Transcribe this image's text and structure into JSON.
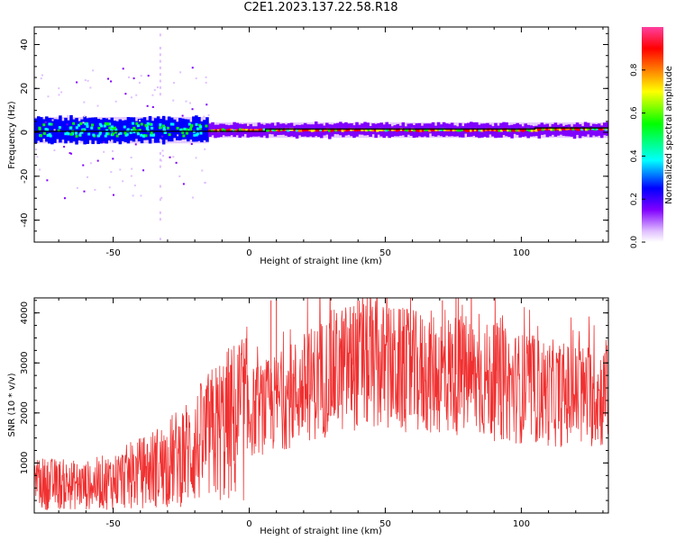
{
  "title": "C2E1.2023.137.22.58.R18",
  "chart_data": [
    {
      "type": "heatmap",
      "name": "spectrogram",
      "xlabel": "Height of straight line (km)",
      "ylabel": "Frequency (Hz)",
      "xlim": [
        -79,
        132
      ],
      "ylim": [
        -50,
        48
      ],
      "xticks": [
        -50,
        0,
        50,
        100
      ],
      "yticks": [
        -40,
        -20,
        0,
        20,
        40
      ],
      "colorbar": {
        "label": "Normalized spectral amplitude",
        "range": [
          0,
          1
        ],
        "ticks": [
          0.0,
          0.2,
          0.4,
          0.6,
          0.8
        ],
        "tick_labels": [
          "0.0",
          "0.2",
          "0.4",
          "0.6",
          "0.8"
        ],
        "colormap": [
          "#ffffff",
          "#e0c0ff",
          "#8000ff",
          "#0000ff",
          "#00ffff",
          "#00ff00",
          "#ffff00",
          "#ff8000",
          "#ff0000",
          "#ff40a0"
        ]
      },
      "doppler_line": [
        {
          "x": -79,
          "y": 0.5
        },
        {
          "x": -10,
          "y": 0.5
        },
        {
          "x": 6,
          "y": 0.5
        },
        {
          "x": 6,
          "y": 1.5
        },
        {
          "x": 105,
          "y": 1.5
        },
        {
          "x": 105,
          "y": 2
        },
        {
          "x": 132,
          "y": 2
        }
      ],
      "band": {
        "center_hz": 1,
        "halfwidth_hz": 4
      },
      "grid": false
    },
    {
      "type": "line",
      "name": "snr",
      "xlabel": "Height of straight line (km)",
      "ylabel": "SNR (10 * v/v)",
      "xlim": [
        -79,
        132
      ],
      "ylim": [
        0,
        4300
      ],
      "xticks": [
        -50,
        0,
        50,
        100
      ],
      "yticks": [
        1000,
        2000,
        3000,
        4000
      ],
      "color": "#f03030",
      "trend": [
        {
          "x": -79,
          "y": 600
        },
        {
          "x": -60,
          "y": 550
        },
        {
          "x": -50,
          "y": 650
        },
        {
          "x": -40,
          "y": 800
        },
        {
          "x": -30,
          "y": 1000
        },
        {
          "x": -20,
          "y": 1300
        },
        {
          "x": -10,
          "y": 1700
        },
        {
          "x": 0,
          "y": 2000
        },
        {
          "x": 10,
          "y": 2200
        },
        {
          "x": 20,
          "y": 2500
        },
        {
          "x": 30,
          "y": 2800
        },
        {
          "x": 40,
          "y": 3000
        },
        {
          "x": 50,
          "y": 2900
        },
        {
          "x": 60,
          "y": 2800
        },
        {
          "x": 70,
          "y": 2800
        },
        {
          "x": 80,
          "y": 2750
        },
        {
          "x": 90,
          "y": 2600
        },
        {
          "x": 100,
          "y": 2500
        },
        {
          "x": 110,
          "y": 2400
        },
        {
          "x": 120,
          "y": 2350
        },
        {
          "x": 132,
          "y": 2350
        }
      ],
      "peaks": [
        {
          "x": 8,
          "y": 4250
        },
        {
          "x": 10,
          "y": 4250
        },
        {
          "x": 38,
          "y": 4000
        },
        {
          "x": 71,
          "y": 4250
        },
        {
          "x": 76,
          "y": 4300
        },
        {
          "x": 91,
          "y": 3800
        }
      ],
      "grid": false
    }
  ]
}
